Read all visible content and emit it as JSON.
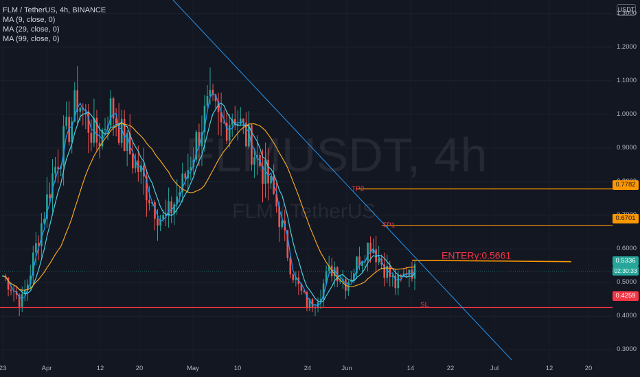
{
  "legend": {
    "symbol": "FLM / TetherUS, 4h, BINANCE",
    "ma1": "MA (9, close, 0)",
    "ma2": "MA (29, close, 0)",
    "ma3": "MA (99, close, 0)"
  },
  "watermark": {
    "big": "FLMUSDT, 4h",
    "small": "FLM / TetherUS"
  },
  "currency": "USDT",
  "annotations": {
    "tp2": "TP2",
    "tp1": "TP1",
    "entry": "ENTERy:0.5661",
    "sl": "SL"
  },
  "price_tags": {
    "tp2": "0.7782",
    "tp1": "0.6701",
    "last": "0.5336",
    "countdown": "02:30:33",
    "sl": "0.4259"
  },
  "colors": {
    "background": "#131722",
    "up": "#26a69a",
    "down": "#ef5350",
    "ma_fast": "#2196f3",
    "ma_mid": "#4dd0e1",
    "ma_slow": "#f5a623",
    "tp": "#ff9800",
    "sl": "#f23645",
    "trendline": "#2196f3"
  },
  "chart_data": {
    "type": "candlestick",
    "y_ticks": [
      "1.3000",
      "1.2000",
      "1.1000",
      "1.0000",
      "0.9000",
      "0.8000",
      "0.7000",
      "0.6000",
      "0.5000",
      "0.4000",
      "0.3000"
    ],
    "x_ticks": [
      "23",
      "Apr",
      "12",
      "20",
      "May",
      "10",
      "24",
      "Jun",
      "14",
      "22",
      "Jul",
      "12",
      "20"
    ],
    "ylim": [
      0.27,
      1.34
    ],
    "levels": {
      "tp2": 0.7782,
      "tp1": 0.6701,
      "entry": 0.5661,
      "last": 0.5336,
      "sl": 0.4259
    },
    "close_path": [
      0.52,
      0.5,
      0.47,
      0.44,
      0.5,
      0.58,
      0.66,
      0.74,
      0.82,
      0.88,
      0.93,
      0.98,
      1.05,
      1.0,
      0.96,
      0.92,
      0.95,
      1.02,
      1.0,
      0.94,
      0.9,
      0.86,
      0.83,
      0.78,
      0.74,
      0.7,
      0.68,
      0.72,
      0.76,
      0.8,
      0.86,
      0.92,
      0.98,
      1.02,
      1.0,
      0.96,
      0.98,
      1.01,
      0.97,
      0.93,
      0.9,
      0.86,
      0.82,
      0.78,
      0.72,
      0.64,
      0.56,
      0.5,
      0.46,
      0.43,
      0.45,
      0.48,
      0.52,
      0.55,
      0.52,
      0.5,
      0.53,
      0.57,
      0.6,
      0.62,
      0.58,
      0.55,
      0.52,
      0.49,
      0.51,
      0.55,
      0.53
    ],
    "series": [
      {
        "name": "MA (9, close, 0)",
        "color": "#2196f3"
      },
      {
        "name": "MA (29, close, 0)",
        "color": "#4dd0e1"
      },
      {
        "name": "MA (99, close, 0)",
        "color": "#f5a623"
      }
    ]
  }
}
